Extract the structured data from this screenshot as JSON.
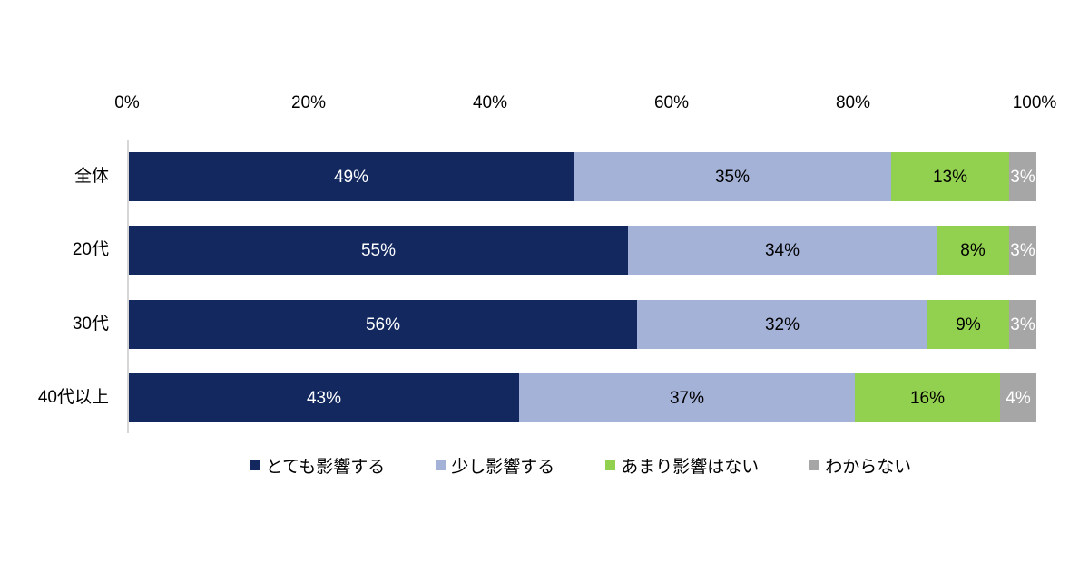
{
  "chart_data": {
    "type": "bar",
    "orientation": "horizontal",
    "stacked": true,
    "title": "",
    "categories": [
      "全体",
      "20代",
      "30代",
      "40代以上"
    ],
    "series": [
      {
        "name": "とても影響する",
        "color": "#12285f",
        "label_color": "#ffffff",
        "values": [
          49,
          55,
          56,
          43
        ]
      },
      {
        "name": "少し影響する",
        "color": "#a4b2d8",
        "label_color": "#000000",
        "values": [
          35,
          34,
          32,
          37
        ]
      },
      {
        "name": "あまり影響はない",
        "color": "#92d050",
        "label_color": "#000000",
        "values": [
          13,
          8,
          9,
          16
        ]
      },
      {
        "name": "わからない",
        "color": "#a6a6a6",
        "label_color": "#ffffff",
        "values": [
          3,
          3,
          3,
          4
        ]
      }
    ],
    "value_suffix": "%",
    "x_axis": {
      "position": "top",
      "min": 0,
      "max": 100,
      "ticks": [
        "0%",
        "20%",
        "40%",
        "60%",
        "80%",
        "100%"
      ],
      "tick_values": [
        0,
        20,
        40,
        60,
        80,
        100
      ]
    },
    "legend": {
      "position": "bottom",
      "entries": [
        "とても影響する",
        "少し影響する",
        "あまり影響はない",
        "わからない"
      ]
    },
    "grid": false,
    "axis_line_color": "#d6d6d6",
    "background_color": "#ffffff"
  }
}
